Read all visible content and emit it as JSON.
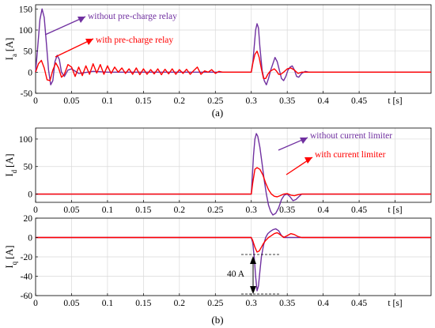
{
  "figure": {
    "caption_a": "(a)",
    "caption_b": "(b)"
  },
  "colors": {
    "without": "#7030a0",
    "with": "#ff0000",
    "grid": "#d9d9d9"
  },
  "chart_data": [
    {
      "id": "a",
      "type": "line",
      "xlabel": "t [s]",
      "ylabel": "I_a [A]",
      "ylabel_main": "I",
      "ylabel_sub": "a",
      "ylabel_unit": "[A]",
      "xlim": [
        0,
        0.55
      ],
      "ylim": [
        -50,
        160
      ],
      "xticks": [
        0,
        0.05,
        0.1,
        0.15,
        0.2,
        0.25,
        0.3,
        0.35,
        0.4,
        0.45,
        0.5
      ],
      "xtick_labels": [
        "0",
        "0.05",
        "0.1",
        "0.15",
        "0.2",
        "0.25",
        "0.3",
        "0.35",
        "0.4",
        "0.45",
        "t [s]"
      ],
      "yticks": [
        -50,
        0,
        50,
        100,
        150
      ],
      "grid": true,
      "series": [
        {
          "name": "without pre-charge relay",
          "color": "#7030a0",
          "x": [
            0,
            0.003,
            0.006,
            0.009,
            0.012,
            0.015,
            0.018,
            0.021,
            0.024,
            0.027,
            0.03,
            0.033,
            0.036,
            0.04,
            0.045,
            0.05,
            0.06,
            0.08,
            0.1,
            0.3,
            0.302,
            0.304,
            0.306,
            0.308,
            0.31,
            0.312,
            0.315,
            0.318,
            0.321,
            0.324,
            0.327,
            0.33,
            0.333,
            0.336,
            0.339,
            0.342,
            0.345,
            0.348,
            0.351,
            0.354,
            0.357,
            0.36,
            0.363,
            0.366,
            0.37,
            0.375,
            0.38,
            0.4,
            0.55
          ],
          "y": [
            0,
            60,
            125,
            150,
            130,
            70,
            5,
            -30,
            -20,
            25,
            40,
            30,
            0,
            -10,
            5,
            8,
            -3,
            2,
            0,
            0,
            20,
            60,
            100,
            115,
            105,
            60,
            5,
            -20,
            -30,
            -15,
            5,
            20,
            35,
            25,
            5,
            -15,
            -20,
            -10,
            5,
            12,
            15,
            5,
            -10,
            -12,
            -3,
            2,
            0,
            0,
            0
          ]
        },
        {
          "name": "with pre-charge relay",
          "color": "#ff0000",
          "x": [
            0,
            0.004,
            0.008,
            0.012,
            0.016,
            0.02,
            0.024,
            0.028,
            0.032,
            0.036,
            0.04,
            0.045,
            0.05,
            0.055,
            0.06,
            0.065,
            0.07,
            0.075,
            0.08,
            0.085,
            0.09,
            0.095,
            0.1,
            0.105,
            0.11,
            0.115,
            0.12,
            0.125,
            0.13,
            0.135,
            0.14,
            0.145,
            0.15,
            0.155,
            0.16,
            0.165,
            0.17,
            0.175,
            0.18,
            0.185,
            0.19,
            0.195,
            0.2,
            0.205,
            0.21,
            0.215,
            0.22,
            0.225,
            0.23,
            0.235,
            0.24,
            0.245,
            0.25,
            0.255,
            0.26,
            0.3,
            0.302,
            0.305,
            0.308,
            0.311,
            0.314,
            0.317,
            0.32,
            0.323,
            0.326,
            0.329,
            0.332,
            0.335,
            0.338,
            0.341,
            0.345,
            0.35,
            0.355,
            0.36,
            0.365,
            0.37,
            0.38,
            0.55
          ],
          "y": [
            0,
            20,
            28,
            10,
            -18,
            -20,
            5,
            22,
            10,
            -12,
            -5,
            18,
            12,
            -10,
            12,
            -8,
            15,
            -5,
            20,
            -2,
            18,
            -5,
            15,
            -3,
            12,
            0,
            10,
            -3,
            8,
            -5,
            10,
            -6,
            8,
            -5,
            6,
            -4,
            8,
            -6,
            7,
            -4,
            8,
            -5,
            6,
            -3,
            7,
            -5,
            4,
            12,
            -5,
            3,
            0,
            6,
            -3,
            2,
            0,
            0,
            20,
            42,
            50,
            35,
            8,
            -15,
            -15,
            -5,
            2,
            5,
            8,
            3,
            -5,
            -5,
            0,
            8,
            10,
            5,
            -3,
            0,
            0,
            0
          ]
        }
      ],
      "annotations": [
        {
          "text": "without pre-charge relay",
          "color": "#7030a0"
        },
        {
          "text": "with pre-charge relay",
          "color": "#ff0000"
        }
      ]
    },
    {
      "id": "b_top",
      "type": "line",
      "xlabel": "t [s]",
      "ylabel": "I_d [A]",
      "ylabel_main": "I",
      "ylabel_sub": "d",
      "ylabel_unit": "[A]",
      "xlim": [
        0,
        0.55
      ],
      "ylim": [
        -15,
        120
      ],
      "xticks": [
        0,
        0.05,
        0.1,
        0.15,
        0.2,
        0.25,
        0.3,
        0.35,
        0.4,
        0.45,
        0.5
      ],
      "xtick_labels": [
        "0",
        "0.05",
        "0.1",
        "0.15",
        "0.2",
        "0.25",
        "0.3",
        "0.35",
        "0.4",
        "0.45",
        "t [s]"
      ],
      "yticks": [
        0,
        50,
        100
      ],
      "grid": true,
      "series": [
        {
          "name": "without current limiter",
          "color": "#7030a0",
          "x": [
            0,
            0.3,
            0.301,
            0.303,
            0.305,
            0.307,
            0.309,
            0.312,
            0.315,
            0.318,
            0.321,
            0.324,
            0.327,
            0.33,
            0.334,
            0.338,
            0.342,
            0.346,
            0.35,
            0.354,
            0.358,
            0.362,
            0.366,
            0.37,
            0.375,
            0.38,
            0.4,
            0.55
          ],
          "y": [
            0,
            0,
            20,
            70,
            100,
            110,
            105,
            85,
            55,
            25,
            0,
            -20,
            -32,
            -38,
            -35,
            -25,
            -10,
            -2,
            0,
            -5,
            -12,
            -10,
            -5,
            0,
            0,
            0,
            0,
            0
          ]
        },
        {
          "name": "with current limiter",
          "color": "#ff0000",
          "x": [
            0,
            0.3,
            0.302,
            0.305,
            0.308,
            0.312,
            0.316,
            0.32,
            0.324,
            0.328,
            0.332,
            0.336,
            0.34,
            0.345,
            0.35,
            0.355,
            0.36,
            0.365,
            0.37,
            0.38,
            0.55
          ],
          "y": [
            0,
            0,
            20,
            45,
            48,
            45,
            35,
            20,
            8,
            0,
            -4,
            -5,
            -3,
            0,
            1,
            -2,
            -3,
            -1,
            0,
            0,
            0
          ]
        }
      ],
      "annotations": [
        {
          "text": "without current limiter",
          "color": "#7030a0"
        },
        {
          "text": "with current limiter",
          "color": "#ff0000"
        }
      ]
    },
    {
      "id": "b_bottom",
      "type": "line",
      "xlabel": "t [s]",
      "ylabel": "I_q [A]",
      "ylabel_main": "I",
      "ylabel_sub": "q",
      "ylabel_unit": "[A]",
      "xlim": [
        0,
        0.55
      ],
      "ylim": [
        -60,
        20
      ],
      "xticks": [
        0,
        0.05,
        0.1,
        0.15,
        0.2,
        0.25,
        0.3,
        0.35,
        0.4,
        0.45,
        0.5
      ],
      "xtick_labels": [
        "0",
        "0.05",
        "0.1",
        "0.15",
        "0.2",
        "0.25",
        "0.3",
        "0.35",
        "0.4",
        "0.45",
        "t [s]"
      ],
      "yticks": [
        -60,
        -40,
        -20,
        0,
        20
      ],
      "grid": true,
      "series": [
        {
          "name": "without current limiter",
          "color": "#7030a0",
          "x": [
            0,
            0.3,
            0.302,
            0.304,
            0.306,
            0.308,
            0.31,
            0.312,
            0.314,
            0.317,
            0.32,
            0.323,
            0.326,
            0.33,
            0.334,
            0.338,
            0.342,
            0.346,
            0.35,
            0.36,
            0.55
          ],
          "y": [
            0,
            0,
            -5,
            -20,
            -40,
            -55,
            -50,
            -35,
            -20,
            -8,
            0,
            4,
            6,
            8,
            9,
            7,
            2,
            0,
            0,
            0,
            0
          ]
        },
        {
          "name": "with current limiter",
          "color": "#ff0000",
          "x": [
            0,
            0.3,
            0.302,
            0.305,
            0.308,
            0.311,
            0.314,
            0.317,
            0.32,
            0.324,
            0.328,
            0.332,
            0.336,
            0.34,
            0.345,
            0.35,
            0.355,
            0.36,
            0.365,
            0.37,
            0.38,
            0.55
          ],
          "y": [
            0,
            0,
            -3,
            -10,
            -15,
            -14,
            -10,
            -6,
            -3,
            0,
            2,
            4,
            5,
            3,
            0,
            2,
            4,
            3,
            1,
            0,
            0,
            0
          ]
        }
      ],
      "annotations": [
        {
          "text": "40 A",
          "color": "#000000"
        }
      ]
    }
  ]
}
